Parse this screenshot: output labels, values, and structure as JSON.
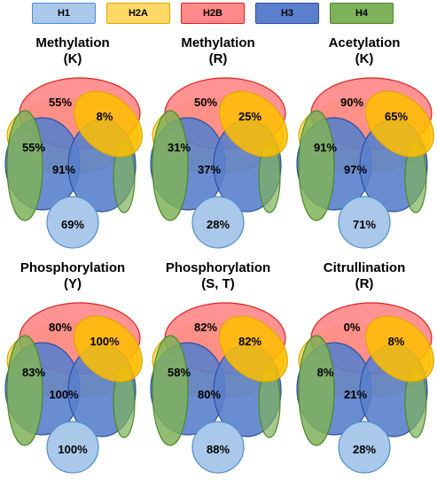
{
  "legend": [
    {
      "label": "H1",
      "fill": "#a9c8ea",
      "stroke": "#4f8fd0"
    },
    {
      "label": "H2A",
      "fill": "#ffd966",
      "stroke": "#e0a800"
    },
    {
      "label": "H2B",
      "fill": "#ff8a8a",
      "stroke": "#e02020"
    },
    {
      "label": "H3",
      "fill": "#5a7fcc",
      "stroke": "#2d4fa0"
    },
    {
      "label": "H4",
      "fill": "#7fb15a",
      "stroke": "#4a8a2a"
    }
  ],
  "panels": [
    {
      "title_line1": "Methylation",
      "title_line2": "(K)",
      "h2b": "55%",
      "h2a": "8%",
      "h4": "55%",
      "h3": "91%",
      "h1": "69%"
    },
    {
      "title_line1": "Methylation",
      "title_line2": "(R)",
      "h2b": "50%",
      "h2a": "25%",
      "h4": "31%",
      "h3": "37%",
      "h1": "28%"
    },
    {
      "title_line1": "Acetylation",
      "title_line2": "(K)",
      "h2b": "90%",
      "h2a": "65%",
      "h4": "91%",
      "h3": "97%",
      "h1": "71%"
    },
    {
      "title_line1": "Phosphorylation",
      "title_line2": "(Y)",
      "h2b": "80%",
      "h2a": "100%",
      "h4": "83%",
      "h3": "100%",
      "h1": "100%"
    },
    {
      "title_line1": "Phosphorylation",
      "title_line2": "(S, T)",
      "h2b": "82%",
      "h2a": "82%",
      "h4": "58%",
      "h3": "80%",
      "h1": "88%"
    },
    {
      "title_line1": "Citrullination",
      "title_line2": "(R)",
      "h2b": "0%",
      "h2a": "8%",
      "h4": "8%",
      "h3": "21%",
      "h1": "28%"
    }
  ]
}
